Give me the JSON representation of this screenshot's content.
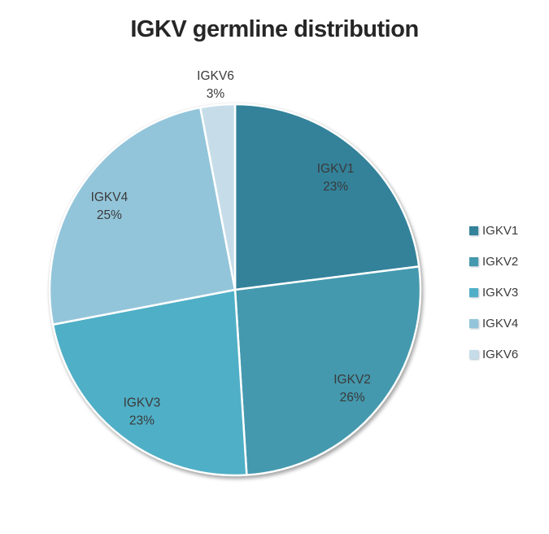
{
  "chart_data": {
    "type": "pie",
    "title": "IGKV germline distribution",
    "categories": [
      "IGKV1",
      "IGKV2",
      "IGKV3",
      "IGKV4",
      "IGKV6"
    ],
    "values": [
      23,
      26,
      23,
      25,
      3
    ],
    "value_suffix": "%",
    "colors": [
      "#33829A",
      "#4499AE",
      "#4FAFC6",
      "#93C5DA",
      "#C6DDE9"
    ],
    "slice_label_positions": [
      "inside",
      "inside",
      "inside",
      "inside",
      "outside"
    ],
    "slice_labels": [
      [
        "IGKV1",
        "23%"
      ],
      [
        "IGKV2",
        "26%"
      ],
      [
        "IGKV3",
        "23%"
      ],
      [
        "IGKV4",
        "25%"
      ],
      [
        "IGKV6",
        "3%"
      ]
    ],
    "start_angle_deg": 0,
    "direction": "clockwise",
    "legend_position": "right",
    "legend_entries": [
      "IGKV1",
      "IGKV2",
      "IGKV3",
      "IGKV4",
      "IGKV6"
    ],
    "title_color": "#262626",
    "label_text_color": "#3a3a3a",
    "separator_color": "#ffffff",
    "background_color": "#ffffff"
  }
}
